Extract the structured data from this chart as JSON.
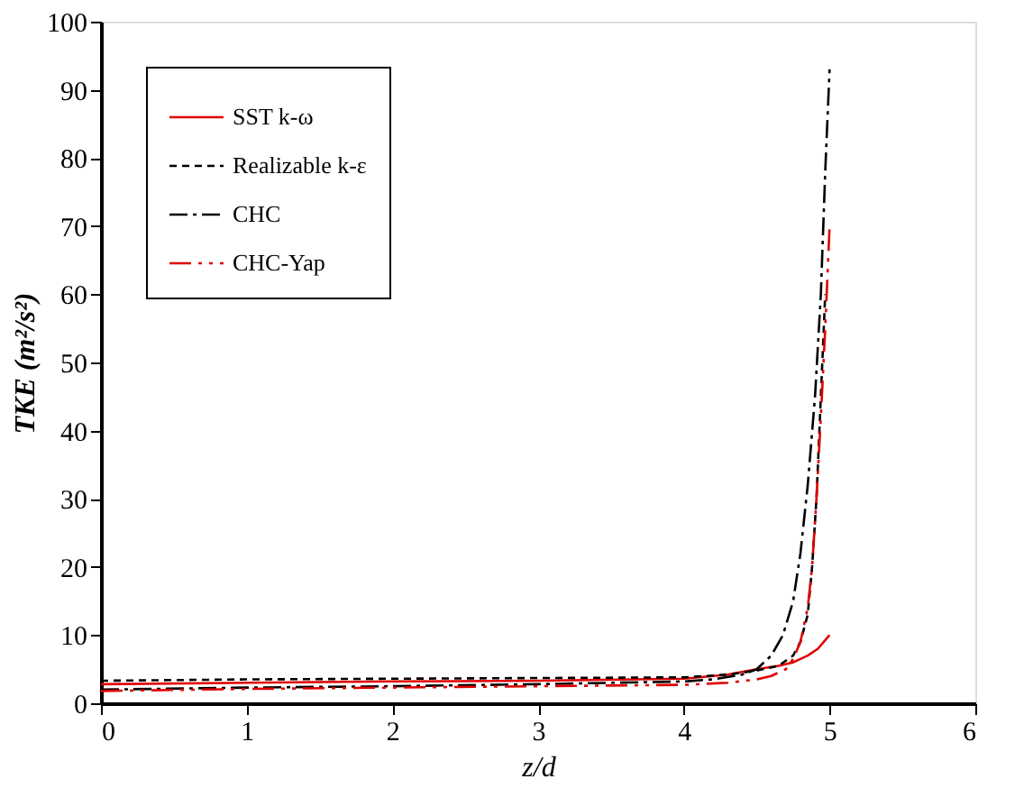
{
  "chart_data": {
    "type": "line",
    "xlabel": "z/d",
    "ylabel": "TKE (m²/s²)",
    "xlim": [
      0,
      6
    ],
    "ylim": [
      0,
      100
    ],
    "xticks": [
      0,
      1,
      2,
      3,
      4,
      5,
      6
    ],
    "yticks": [
      0,
      10,
      20,
      30,
      40,
      50,
      60,
      70,
      80,
      90,
      100
    ],
    "grid": false,
    "legend": "top left",
    "marker": "none",
    "series": [
      {
        "name": "SST k-ω",
        "color": "#e00000",
        "line_style": "solid",
        "x": [
          0,
          1,
          2,
          3,
          4,
          4.3,
          4.5,
          4.65,
          4.75,
          4.85,
          4.92,
          5.0
        ],
        "values": [
          2.8,
          3.0,
          3.2,
          3.3,
          3.6,
          4.2,
          5.0,
          5.5,
          6.0,
          7.0,
          8.0,
          10
        ]
      },
      {
        "name": "Realizable k-ε",
        "color": "#000000",
        "line_style": "dashed",
        "x": [
          0,
          1,
          2,
          3,
          4,
          4.3,
          4.5,
          4.65,
          4.75,
          4.8,
          4.85,
          4.88,
          4.91,
          4.94,
          4.97
        ],
        "values": [
          3.3,
          3.5,
          3.6,
          3.7,
          3.8,
          4.2,
          4.8,
          5.5,
          7,
          9,
          13,
          20,
          30,
          45,
          60
        ]
      },
      {
        "name": "CHC",
        "color": "#000000",
        "line_style": "dashdot",
        "x": [
          0,
          1,
          2,
          3,
          4,
          4.2,
          4.4,
          4.5,
          4.6,
          4.68,
          4.75,
          4.8,
          4.85,
          4.9,
          4.94,
          4.97,
          5.0
        ],
        "values": [
          2.0,
          2.3,
          2.5,
          2.8,
          3.2,
          3.5,
          4.2,
          5,
          7,
          10,
          15,
          22,
          32,
          45,
          60,
          78,
          93
        ]
      },
      {
        "name": "CHC-Yap",
        "color": "#e00000",
        "line_style": "dashdotdot",
        "x": [
          0,
          1,
          2,
          3,
          4,
          4.3,
          4.5,
          4.6,
          4.7,
          4.75,
          4.8,
          4.85,
          4.88,
          4.91,
          4.94,
          4.97,
          5.0
        ],
        "values": [
          1.8,
          2.1,
          2.3,
          2.5,
          2.7,
          3.0,
          3.5,
          4.0,
          5.0,
          6.5,
          9,
          14,
          20,
          30,
          42,
          55,
          70
        ]
      }
    ]
  }
}
